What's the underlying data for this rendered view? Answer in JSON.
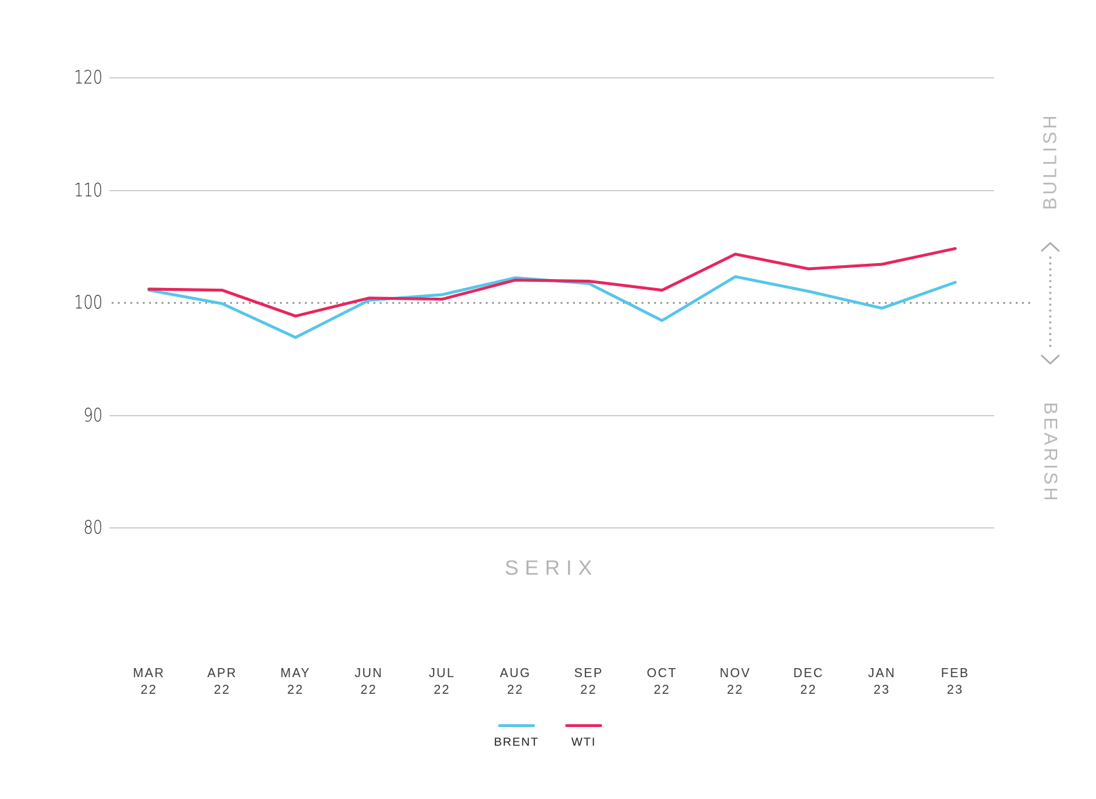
{
  "chart_data": {
    "type": "line",
    "title": "SERIX",
    "categories": [
      {
        "month": "MAR",
        "year": "22"
      },
      {
        "month": "APR",
        "year": "22"
      },
      {
        "month": "MAY",
        "year": "22"
      },
      {
        "month": "JUN",
        "year": "22"
      },
      {
        "month": "JUL",
        "year": "22"
      },
      {
        "month": "AUG",
        "year": "22"
      },
      {
        "month": "SEP",
        "year": "22"
      },
      {
        "month": "OCT",
        "year": "22"
      },
      {
        "month": "NOV",
        "year": "22"
      },
      {
        "month": "DEC",
        "year": "22"
      },
      {
        "month": "JAN",
        "year": "23"
      },
      {
        "month": "FEB",
        "year": "23"
      }
    ],
    "series": [
      {
        "name": "BRENT",
        "color": "#56C5EA",
        "values": [
          101.1,
          99.9,
          96.9,
          100.2,
          100.7,
          102.2,
          101.7,
          98.4,
          102.3,
          101.0,
          99.5,
          101.8
        ]
      },
      {
        "name": "WTI",
        "color": "#E8255C",
        "values": [
          101.2,
          101.1,
          98.8,
          100.4,
          100.3,
          102.0,
          101.9,
          101.1,
          104.3,
          103.0,
          103.4,
          104.8
        ]
      }
    ],
    "y_ticks": [
      120,
      110,
      100,
      90,
      80
    ],
    "ylim": [
      75,
      122
    ],
    "baseline": 100,
    "baseline_style": "dotted",
    "grid": true,
    "legend_position": "bottom",
    "right_labels": {
      "top": "BULLISH",
      "bottom": "BEARISH"
    },
    "colors": {
      "gridline": "#adadad",
      "baseline_dots": "#999999",
      "side_labels": "#b9b9b9",
      "arrow": "#ababab"
    }
  }
}
